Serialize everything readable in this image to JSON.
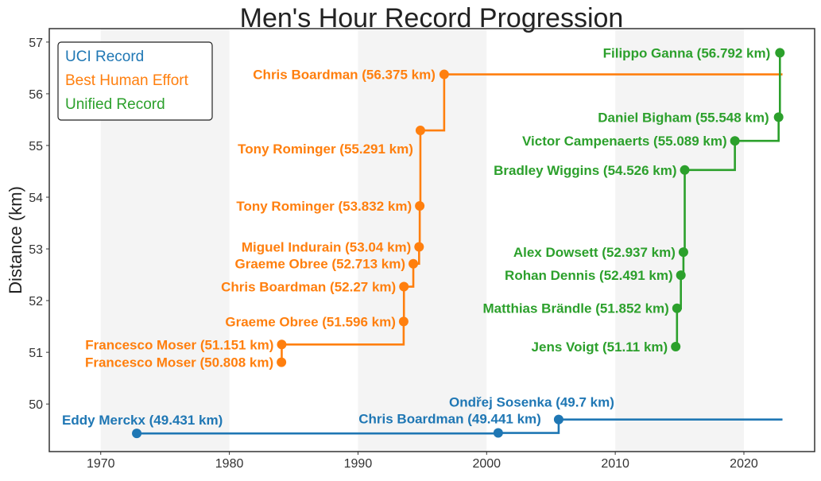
{
  "chart_data": {
    "type": "line",
    "title": "Men's Hour Record Progression",
    "xlabel": "",
    "ylabel": "Distance (km)",
    "xlim": [
      1966,
      2025.5
    ],
    "ylim": [
      49.08,
      57.26
    ],
    "xticks": [
      1970,
      1980,
      1990,
      2000,
      2010,
      2020
    ],
    "yticks": [
      50,
      51,
      52,
      53,
      54,
      55,
      56,
      57
    ],
    "shaded_decades": [
      [
        1970,
        1980
      ],
      [
        1990,
        2000
      ],
      [
        2010,
        2020
      ]
    ],
    "grid": false,
    "legend_position": "top-left",
    "line_end_year": 2023,
    "series": [
      {
        "name": "UCI Record",
        "color": "#1f77b4",
        "points": [
          {
            "x": 1972.8,
            "y": 49.431,
            "label": "Eddy Merckx (49.431 km)"
          },
          {
            "x": 2000.9,
            "y": 49.441,
            "label": "Chris Boardman (49.441 km)"
          },
          {
            "x": 2005.6,
            "y": 49.7,
            "label": "Ondřej Sosenka (49.7 km)"
          }
        ]
      },
      {
        "name": "Best Human Effort",
        "color": "#ff7f0e",
        "points": [
          {
            "x": 1984.05,
            "y": 50.808,
            "label": "Francesco Moser (50.808 km)"
          },
          {
            "x": 1984.07,
            "y": 51.151,
            "label": "Francesco Moser (51.151 km)"
          },
          {
            "x": 1993.55,
            "y": 51.596,
            "label": "Graeme Obree (51.596 km)"
          },
          {
            "x": 1993.57,
            "y": 52.27,
            "label": "Chris Boardman (52.27 km)"
          },
          {
            "x": 1994.3,
            "y": 52.713,
            "label": "Graeme Obree (52.713 km)"
          },
          {
            "x": 1994.75,
            "y": 53.04,
            "label": "Miguel Indurain (53.04 km)"
          },
          {
            "x": 1994.8,
            "y": 53.832,
            "label": "Tony Rominger (53.832 km)"
          },
          {
            "x": 1994.85,
            "y": 55.291,
            "label": "Tony Rominger (55.291 km)"
          },
          {
            "x": 1996.7,
            "y": 56.375,
            "label": "Chris Boardman (56.375 km)"
          }
        ]
      },
      {
        "name": "Unified Record",
        "color": "#2ca02c",
        "points": [
          {
            "x": 2014.7,
            "y": 51.11,
            "label": "Jens Voigt (51.11 km)"
          },
          {
            "x": 2014.8,
            "y": 51.852,
            "label": "Matthias Brändle (51.852 km)"
          },
          {
            "x": 2015.1,
            "y": 52.491,
            "label": "Rohan Dennis (52.491 km)"
          },
          {
            "x": 2015.3,
            "y": 52.937,
            "label": "Alex Dowsett (52.937 km)"
          },
          {
            "x": 2015.4,
            "y": 54.526,
            "label": "Bradley Wiggins (54.526 km)"
          },
          {
            "x": 2019.3,
            "y": 55.089,
            "label": "Victor Campenaerts (55.089 km)"
          },
          {
            "x": 2022.7,
            "y": 55.548,
            "label": "Daniel Bigham (55.548 km)"
          },
          {
            "x": 2022.8,
            "y": 56.792,
            "label": "Filippo Ganna (56.792 km)"
          }
        ]
      }
    ]
  }
}
